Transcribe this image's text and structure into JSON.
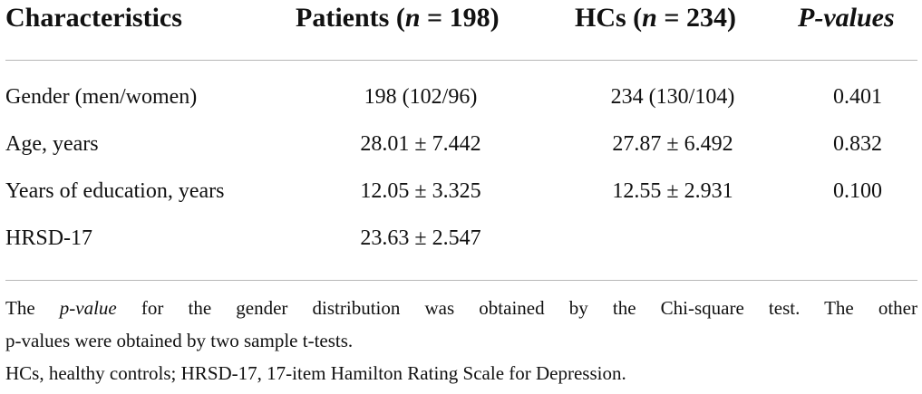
{
  "table": {
    "headers": {
      "characteristics": "Characteristics",
      "patients_prefix": "Patients (",
      "patients_n": "n",
      "patients_suffix": " = 198)",
      "hcs_prefix": "HCs (",
      "hcs_n": "n",
      "hcs_suffix": " = 234)",
      "pvalues": "P-values"
    },
    "rows": [
      {
        "label": "Gender (men/women)",
        "patients": "198 (102/96)",
        "hcs": "234 (130/104)",
        "p": "0.401"
      },
      {
        "label": "Age, years",
        "patients": "28.01 ± 7.442",
        "hcs": "27.87 ± 6.492",
        "p": "0.832"
      },
      {
        "label": "Years of education, years",
        "patients": "12.05 ± 3.325",
        "hcs": "12.55 ± 2.931",
        "p": "0.100"
      },
      {
        "label": "HRSD-17",
        "patients": "23.63 ± 2.547",
        "hcs": "",
        "p": ""
      }
    ]
  },
  "footnotes": {
    "line1_pre": "The ",
    "line1_italic": "p-value",
    "line1_post": " for the gender distribution was obtained by the Chi-square test. The other",
    "line2": "p-values were obtained by two sample t-tests.",
    "line3": "HCs, healthy controls; HRSD-17, 17-item Hamilton Rating Scale for Depression."
  }
}
